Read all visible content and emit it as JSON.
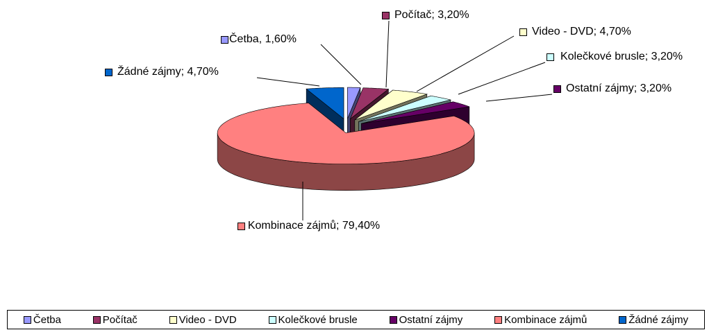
{
  "chart_data": {
    "type": "pie",
    "categories": [
      "Četba",
      "Počítač",
      "Video - DVD",
      "Kolečkové brusle",
      "Ostatní zájmy",
      "Kombinace zájmů",
      "Žádné zájmy"
    ],
    "values": [
      1.6,
      3.2,
      4.7,
      3.2,
      3.2,
      79.4,
      4.7
    ],
    "value_labels": [
      "Četba, 1,60%",
      "Počítač; 3,20%",
      "Video - DVD; 4,70%",
      "Kolečkové brusle; 3,20%",
      "Ostatní zájmy; 3,20%",
      "Kombinace zájmů; 79,40%",
      "Žádné zájmy; 4,70%"
    ],
    "colors": [
      "#9999ff",
      "#993366",
      "#ffffcc",
      "#ccffff",
      "#660066",
      "#ff8080",
      "#0066cc"
    ],
    "legend": "bottom"
  }
}
